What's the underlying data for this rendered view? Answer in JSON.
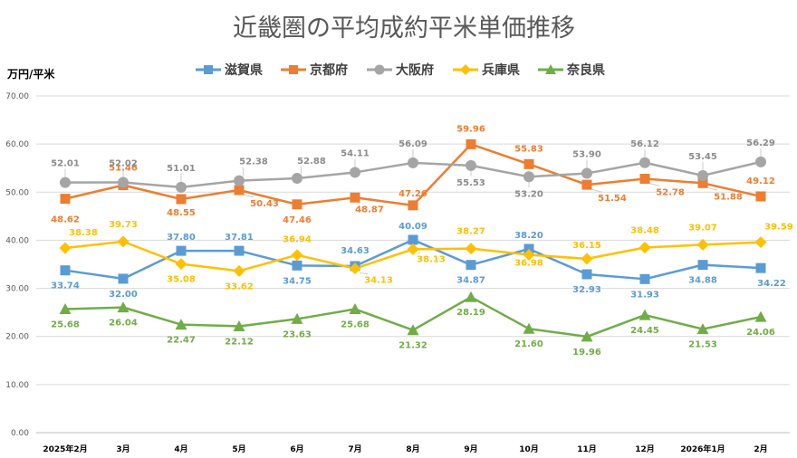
{
  "chart_data": {
    "type": "line",
    "title": "近畿圏の平均成約平米単価推移",
    "ylabel": "万円/平米",
    "xlabel": "",
    "ylim": [
      0,
      70
    ],
    "yticks": [
      "0.00",
      "10.00",
      "20.00",
      "30.00",
      "40.00",
      "50.00",
      "60.00",
      "70.00"
    ],
    "grid": true,
    "legend_position": "top",
    "categories": [
      "2025年2月",
      "3月",
      "4月",
      "5月",
      "6月",
      "7月",
      "8月",
      "9月",
      "10月",
      "11月",
      "12月",
      "2026年1月",
      "2月"
    ],
    "series": [
      {
        "name": "滋賀県",
        "marker": "square",
        "color": "#5b9bd5",
        "values": [
          33.74,
          32.0,
          37.8,
          37.81,
          34.75,
          34.63,
          40.09,
          34.87,
          38.2,
          32.93,
          31.93,
          34.88,
          34.22
        ],
        "labels": [
          "33.74",
          "32.00",
          "37.80",
          "37.81",
          "34.75",
          "34.63",
          "40.09",
          "34.87",
          "38.20",
          "32.93",
          "31.93",
          "34.88",
          "34.22"
        ]
      },
      {
        "name": "京都府",
        "marker": "square",
        "color": "#ed7d31",
        "values": [
          48.62,
          51.46,
          48.55,
          50.43,
          47.46,
          48.87,
          47.26,
          59.96,
          55.83,
          51.54,
          52.78,
          51.88,
          49.12
        ],
        "labels": [
          "48.62",
          "51.46",
          "48.55",
          "50.43",
          "47.46",
          "48.87",
          "47.26",
          "59.96",
          "55.83",
          "51.54",
          "52.78",
          "51.88",
          "49.12"
        ]
      },
      {
        "name": "大阪府",
        "marker": "circle",
        "color": "#a5a5a5",
        "values": [
          52.01,
          52.02,
          51.01,
          52.38,
          52.88,
          54.11,
          56.09,
          55.53,
          53.2,
          53.9,
          56.12,
          53.45,
          56.29
        ],
        "labels": [
          "52.01",
          "52.02",
          "51.01",
          "52.38",
          "52.88",
          "54.11",
          "56.09",
          "55.53",
          "53.20",
          "53.90",
          "56.12",
          "53.45",
          "56.29"
        ]
      },
      {
        "name": "兵庫県",
        "marker": "diamond",
        "color": "#ffc000",
        "values": [
          38.38,
          39.73,
          35.08,
          33.62,
          36.94,
          34.13,
          38.13,
          38.27,
          36.98,
          36.15,
          38.48,
          39.07,
          39.59
        ],
        "labels": [
          "38.38",
          "39.73",
          "35.08",
          "33.62",
          "36.94",
          "34.13",
          "38.13",
          "38.27",
          "36.98",
          "36.15",
          "38.48",
          "39.07",
          "39.59"
        ]
      },
      {
        "name": "奈良県",
        "marker": "triangle",
        "color": "#70ad47",
        "values": [
          25.68,
          26.04,
          22.47,
          22.12,
          23.63,
          25.68,
          21.32,
          28.19,
          21.6,
          19.96,
          24.45,
          21.53,
          24.06
        ],
        "labels": [
          "25.68",
          "26.04",
          "22.47",
          "22.12",
          "23.63",
          "25.68",
          "21.32",
          "28.19",
          "21.60",
          "19.96",
          "24.45",
          "21.53",
          "24.06"
        ]
      }
    ]
  }
}
